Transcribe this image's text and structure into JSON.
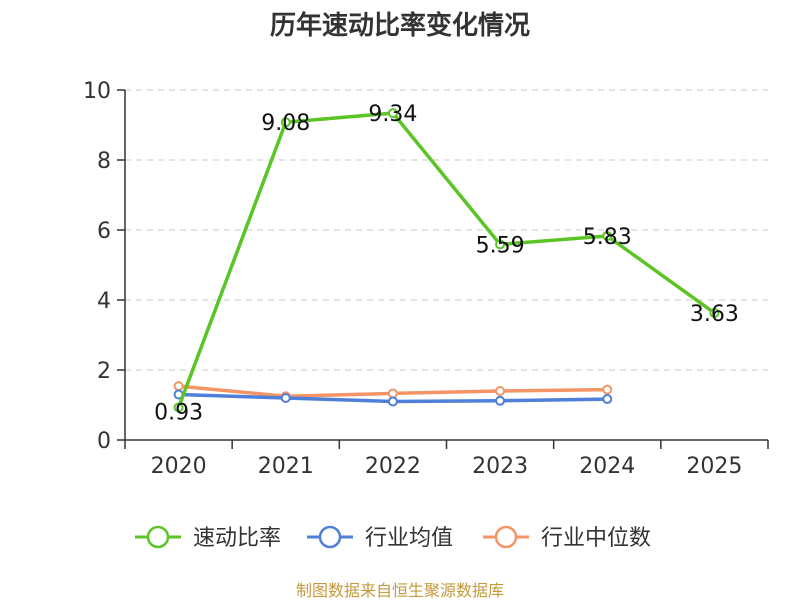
{
  "chart_data": {
    "type": "line",
    "title": "历年速动比率变化情况",
    "categories": [
      "2020",
      "2021",
      "2022",
      "2023",
      "2024",
      "2025"
    ],
    "ylim": [
      0,
      10
    ],
    "yticks": [
      0,
      2,
      4,
      6,
      8,
      10
    ],
    "grid": true,
    "legend_position": "bottom",
    "series": [
      {
        "name": "速动比率",
        "color": "#5cc425",
        "values": [
          0.93,
          9.08,
          9.34,
          5.59,
          5.83,
          3.63
        ],
        "labels": [
          "0.93",
          "9.08",
          "9.34",
          "5.59",
          "5.83",
          "3.63"
        ],
        "show_labels": true
      },
      {
        "name": "行业均值",
        "color": "#4f7fd9",
        "values": [
          1.3,
          1.2,
          1.1,
          1.12,
          1.17,
          null
        ],
        "show_labels": false
      },
      {
        "name": "行业中位数",
        "color": "#f59466",
        "values": [
          1.54,
          1.25,
          1.33,
          1.4,
          1.44,
          null
        ],
        "show_labels": false
      }
    ]
  },
  "source_text": "制图数据来自恒生聚源数据库"
}
